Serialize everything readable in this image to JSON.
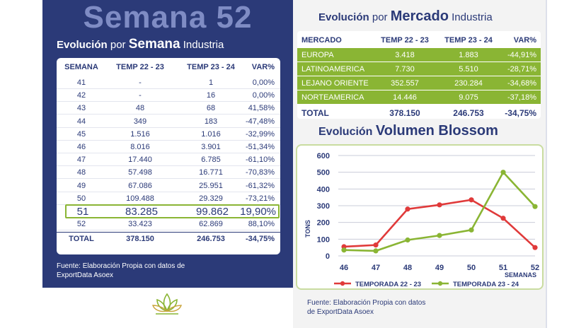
{
  "left": {
    "big_title": "Semana 52",
    "subtitle_pre": "Evolución",
    "subtitle_mid": "por",
    "subtitle_bold": "Semana",
    "subtitle_post": "Industria",
    "table": {
      "headers": [
        "SEMANA",
        "TEMP 22 - 23",
        "TEMP 23 - 24",
        "VAR%"
      ],
      "rows": [
        [
          "41",
          "-",
          "1",
          "0,00%"
        ],
        [
          "42",
          "-",
          "16",
          "0,00%"
        ],
        [
          "43",
          "48",
          "68",
          "41,58%"
        ],
        [
          "44",
          "349",
          "183",
          "-47,48%"
        ],
        [
          "45",
          "1.516",
          "1.016",
          "-32,99%"
        ],
        [
          "46",
          "8.016",
          "3.901",
          "-51,34%"
        ],
        [
          "47",
          "17.440",
          "6.785",
          "-61,10%"
        ],
        [
          "48",
          "57.498",
          "16.771",
          "-70,83%"
        ],
        [
          "49",
          "67.086",
          "25.951",
          "-61,32%"
        ],
        [
          "50",
          "109.488",
          "29.329",
          "-73,21%"
        ],
        [
          "51",
          "83.285",
          "99.862",
          "19,90%"
        ],
        [
          "52",
          "33.423",
          "62.869",
          "88,10%"
        ]
      ],
      "total": [
        "TOTAL",
        "378.150",
        "246.753",
        "-34,75%"
      ]
    },
    "source_line1": "Fuente: Elaboración Propia con datos de",
    "source_line2": "ExportData Asoex"
  },
  "right": {
    "subtitle_pre": "Evolución",
    "subtitle_mid": "por",
    "subtitle_bold": "Mercado",
    "subtitle_post": "Industria",
    "market_table": {
      "headers": [
        "MERCADO",
        "TEMP 22 - 23",
        "TEMP 23 - 24",
        "VAR%"
      ],
      "rows": [
        [
          "EUROPA",
          "3.418",
          "1.883",
          "-44,91%"
        ],
        [
          "LATINOAMERICA",
          "7.730",
          "5.510",
          "-28,71%"
        ],
        [
          "LEJANO ORIENTE",
          "352.557",
          "230.284",
          "-34,68%"
        ],
        [
          "NORTEAMERICA",
          "14.446",
          "9.075",
          "-37,18%"
        ]
      ],
      "total": [
        "TOTAL",
        "378.150",
        "246.753",
        "-34,75%"
      ]
    },
    "chart_title_pre": "Evolución",
    "chart_title_bold": "Volumen Blossom",
    "source_line1": "Fuente: Elaboración Propia con datos",
    "source_line2": "de ExportData Asoex"
  },
  "colors": {
    "navy": "#2b3a78",
    "green": "#8ab534",
    "red": "#e03a3a"
  },
  "chart_data": {
    "type": "line",
    "title": "Evolución Volumen Blossom",
    "xlabel": "SEMANAS",
    "ylabel": "TONS",
    "x": [
      46,
      47,
      48,
      49,
      50,
      51,
      52
    ],
    "ylim": [
      0,
      600
    ],
    "yticks": [
      0,
      100,
      200,
      300,
      400,
      500,
      600
    ],
    "grid": true,
    "legend_position": "bottom",
    "series": [
      {
        "name": "TEMPORADA 22 - 23",
        "color": "#e03a3a",
        "values": [
          55,
          65,
          280,
          305,
          335,
          225,
          50
        ]
      },
      {
        "name": "TEMPORADA 23 - 24",
        "color": "#8ab534",
        "values": [
          35,
          30,
          95,
          122,
          155,
          500,
          295
        ]
      }
    ]
  }
}
